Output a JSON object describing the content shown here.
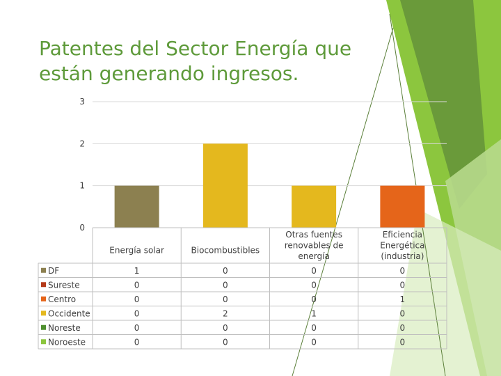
{
  "slide": {
    "title_line1": "Patentes del Sector Energía que",
    "title_line2": "están generando ingresos.",
    "accent_colors": [
      "#8cc63e",
      "#6a9a3a",
      "#b7d98c",
      "#d9edbf"
    ]
  },
  "chart_data": {
    "type": "bar",
    "title": "Patentes del Sector Energía que están generando ingresos.",
    "categories": [
      [
        "Energía solar"
      ],
      [
        "Biocombustibles"
      ],
      [
        "Otras fuentes",
        "renovables de",
        "energía"
      ],
      [
        "Eficiencia",
        "Energética",
        "(industria)"
      ]
    ],
    "series": [
      {
        "name": "DF",
        "color": "#8c8050",
        "values": [
          1,
          0,
          0,
          0
        ]
      },
      {
        "name": "Sureste",
        "color": "#b53a1a",
        "values": [
          0,
          0,
          0,
          0
        ]
      },
      {
        "name": "Centro",
        "color": "#e5651a",
        "values": [
          0,
          0,
          0,
          1
        ]
      },
      {
        "name": "Occidente",
        "color": "#e4b81e",
        "values": [
          0,
          2,
          1,
          0
        ]
      },
      {
        "name": "Noreste",
        "color": "#4e8f2e",
        "values": [
          0,
          0,
          0,
          0
        ]
      },
      {
        "name": "Noroeste",
        "color": "#8cc63e",
        "values": [
          0,
          0,
          0,
          0
        ]
      }
    ],
    "ylim": [
      0,
      3
    ],
    "yticks": [
      0,
      1,
      2,
      3
    ],
    "grid": true,
    "legend": "data-table-left",
    "xlabel": "",
    "ylabel": ""
  }
}
